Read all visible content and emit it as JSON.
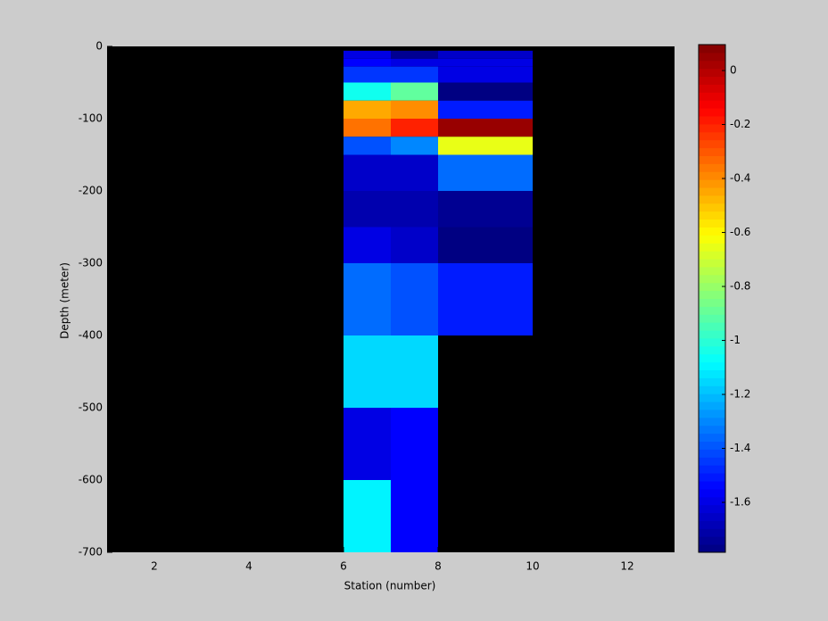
{
  "chart_data": {
    "type": "heatmap",
    "xlabel": "Station (number)",
    "ylabel": "Depth (meter)",
    "x_edges": [
      6,
      7,
      8,
      10
    ],
    "y_edges": [
      -6,
      -17,
      -28,
      -50,
      -75,
      -100,
      -125,
      -150,
      -200,
      -250,
      -300,
      -400,
      -500,
      -600,
      -700
    ],
    "values": [
      [
        -1.6,
        -1.75,
        -1.65
      ],
      [
        -1.55,
        -1.6,
        -1.6
      ],
      [
        -1.45,
        -1.45,
        -1.6
      ],
      [
        -1.05,
        -0.9,
        -1.78
      ],
      [
        -0.45,
        -0.4,
        -1.5
      ],
      [
        -0.35,
        -0.2,
        0.05
      ],
      [
        -1.4,
        -1.3,
        -0.65
      ],
      [
        -1.65,
        -1.65,
        -1.35
      ],
      [
        -1.7,
        -1.7,
        -1.75
      ],
      [
        -1.6,
        -1.65,
        -1.78
      ],
      [
        -1.35,
        -1.4,
        -1.5
      ],
      [
        -1.15,
        -1.15,
        null
      ],
      [
        -1.6,
        -1.55,
        null
      ],
      [
        -1.1,
        -1.55,
        null
      ]
    ],
    "colormap": "jet",
    "background": "#000000",
    "xlim": [
      1,
      13
    ],
    "xticks": [
      2,
      4,
      6,
      8,
      10,
      12
    ],
    "ylim": [
      -700,
      0
    ],
    "yticks": [
      -700,
      -600,
      -500,
      -400,
      -300,
      -200,
      -100,
      0
    ],
    "clim": [
      -1.785,
      0.096
    ],
    "cticks": [
      -1.6,
      -1.4,
      -1.2,
      -1,
      -0.8,
      -0.6,
      -0.4,
      -0.2,
      0
    ]
  }
}
